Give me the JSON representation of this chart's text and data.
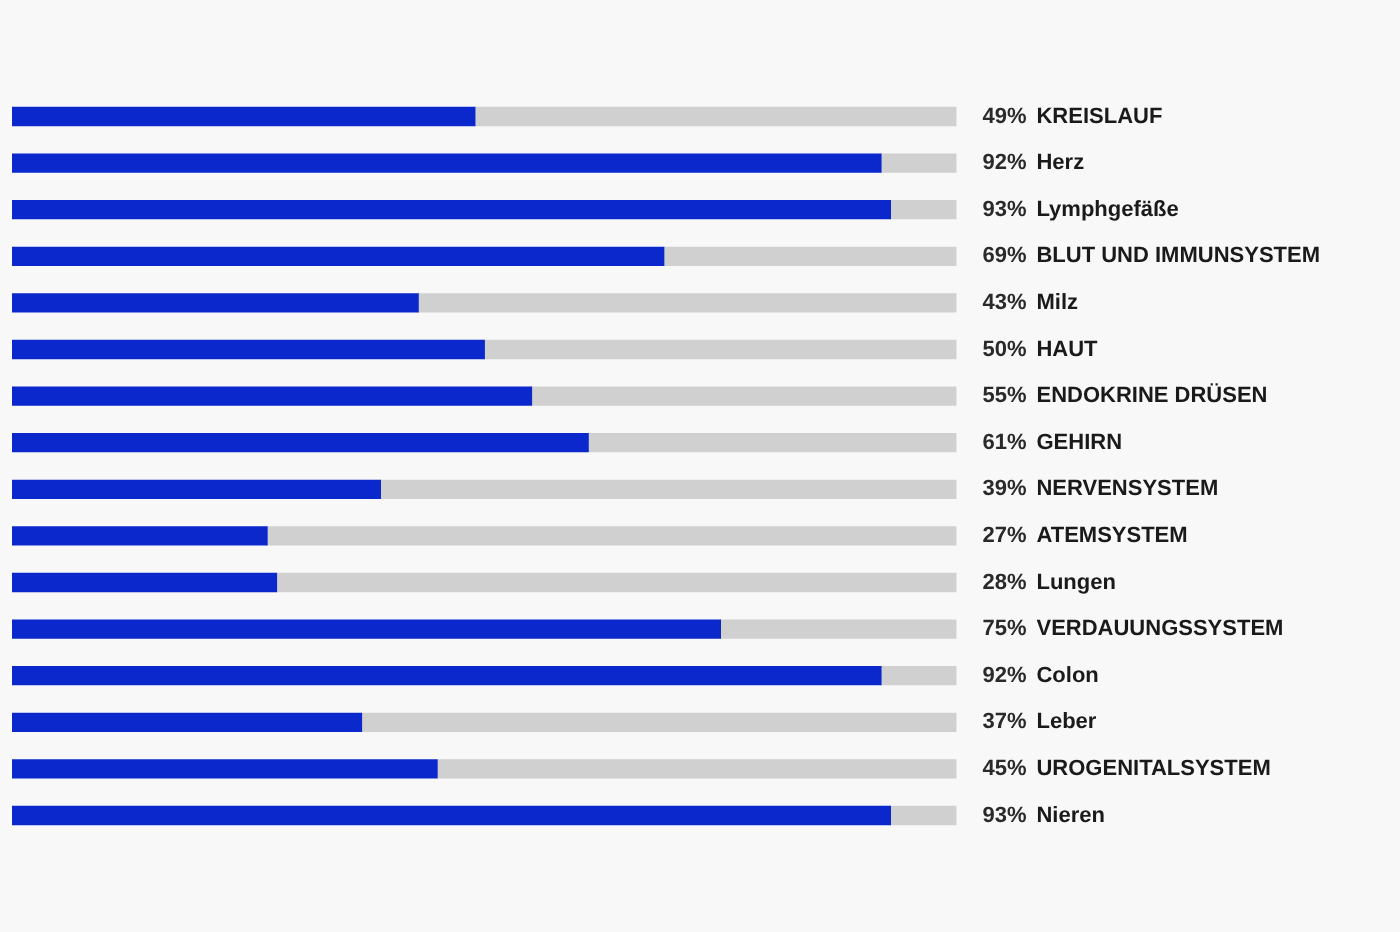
{
  "chart_data": {
    "type": "bar",
    "orientation": "horizontal",
    "stacked": true,
    "categories": [
      "KREISLAUF",
      "Herz",
      "Lymphgefäße",
      "BLUT UND IMMUNSYSTEM",
      "Milz",
      "HAUT",
      "ENDOKRINE DRÜSEN",
      "GEHIRN",
      "NERVENSYSTEM",
      "ATEMSYSTEM",
      "Lungen",
      "VERDAUUNGSSYSTEM",
      "Colon",
      "Leber",
      "UROGENITALSYSTEM",
      "Nieren"
    ],
    "series": [
      {
        "color": "#0a28cc",
        "values": [
          49,
          92,
          93,
          69,
          43,
          50,
          55,
          61,
          39,
          27,
          28,
          75,
          92,
          37,
          45,
          93
        ],
        "value_labels": [
          "49%",
          "92%",
          "93%",
          "69%",
          "43%",
          "50%",
          "55%",
          "61%",
          "39%",
          "27%",
          "28%",
          "75%",
          "92%",
          "37%",
          "45%",
          "93%"
        ]
      },
      {
        "color": "#d0d0d0",
        "values": [
          51,
          8,
          7,
          31,
          57,
          50,
          45,
          39,
          61,
          73,
          72,
          25,
          8,
          63,
          55,
          7
        ]
      }
    ],
    "xlim": [
      0,
      100
    ],
    "tick_labels": "y"
  }
}
